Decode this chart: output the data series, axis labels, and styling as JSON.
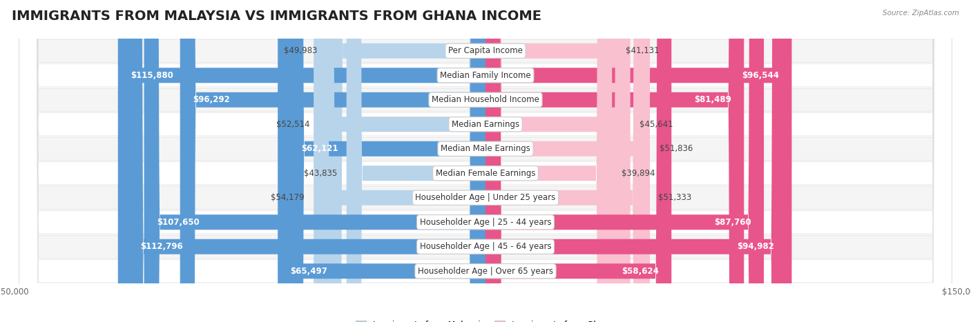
{
  "title": "IMMIGRANTS FROM MALAYSIA VS IMMIGRANTS FROM GHANA INCOME",
  "source": "Source: ZipAtlas.com",
  "categories": [
    "Per Capita Income",
    "Median Family Income",
    "Median Household Income",
    "Median Earnings",
    "Median Male Earnings",
    "Median Female Earnings",
    "Householder Age | Under 25 years",
    "Householder Age | 25 - 44 years",
    "Householder Age | 45 - 64 years",
    "Householder Age | Over 65 years"
  ],
  "malaysia_values": [
    49983,
    115880,
    96292,
    52514,
    62121,
    43835,
    54179,
    107650,
    112796,
    65497
  ],
  "ghana_values": [
    41131,
    96544,
    81489,
    45641,
    51836,
    39894,
    51333,
    87760,
    94982,
    58624
  ],
  "malaysia_labels": [
    "$49,983",
    "$115,880",
    "$96,292",
    "$52,514",
    "$62,121",
    "$43,835",
    "$54,179",
    "$107,650",
    "$112,796",
    "$65,497"
  ],
  "ghana_labels": [
    "$41,131",
    "$96,544",
    "$81,489",
    "$45,641",
    "$51,836",
    "$39,894",
    "$51,333",
    "$87,760",
    "$94,982",
    "$58,624"
  ],
  "malaysia_color_low": "#b8d4eb",
  "malaysia_color_high": "#5b9bd5",
  "ghana_color_low": "#f9c0d0",
  "ghana_color_high": "#e8558a",
  "row_bg_odd": "#f5f5f5",
  "row_bg_even": "#ffffff",
  "max_value": 150000,
  "inside_threshold": 55000,
  "legend_malaysia": "Immigrants from Malaysia",
  "legend_ghana": "Immigrants from Ghana",
  "title_fontsize": 14,
  "label_fontsize": 8.5,
  "category_fontsize": 8.5,
  "axis_label_fontsize": 8.5
}
